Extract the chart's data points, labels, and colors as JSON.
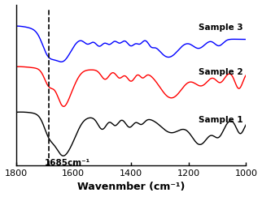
{
  "title": "",
  "xlabel": "Wavenmber (cm⁻¹)",
  "xlim": [
    1800,
    1000
  ],
  "xticks": [
    1800,
    1600,
    1400,
    1200,
    1000
  ],
  "dashed_line_x": 1685,
  "dashed_label": "1685cm⁻¹",
  "sample_labels": [
    "Sample 1",
    "Sample 2",
    "Sample 3"
  ],
  "colors": [
    "black",
    "red",
    "blue"
  ],
  "background": "#ffffff"
}
